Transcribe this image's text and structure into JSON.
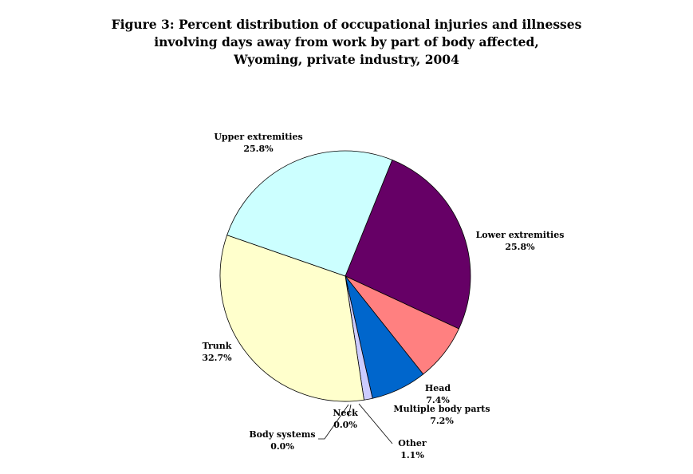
{
  "chart_data": {
    "type": "pie",
    "title": [
      "Figure 3:  Percent distribution of occupational injuries and illnesses",
      "involving days away from work by part of body affected,",
      "Wyoming, private industry, 2004"
    ],
    "slices": [
      {
        "name": "Lower extremities",
        "value": 25.8,
        "label": "25.8%",
        "color": "#660066"
      },
      {
        "name": "Head",
        "value": 7.4,
        "label": "7.4%",
        "color": "#ff8080"
      },
      {
        "name": "Multiple body parts",
        "value": 7.2,
        "label": "7.2%",
        "color": "#0066cc"
      },
      {
        "name": "Other",
        "value": 1.1,
        "label": "1.1%",
        "color": "#ccccff"
      },
      {
        "name": "Neck",
        "value": 0.0,
        "label": "0.0%",
        "color": "#993366"
      },
      {
        "name": "Body systems",
        "value": 0.0,
        "label": "0.0%",
        "color": "#ffff99"
      },
      {
        "name": "Trunk",
        "value": 32.7,
        "label": "32.7%",
        "color": "#ffffcc"
      },
      {
        "name": "Upper extremities",
        "value": 25.8,
        "label": "25.8%",
        "color": "#ccffff"
      }
    ],
    "start_angle_deg": 22,
    "direction": "clockwise",
    "legend": "none"
  }
}
